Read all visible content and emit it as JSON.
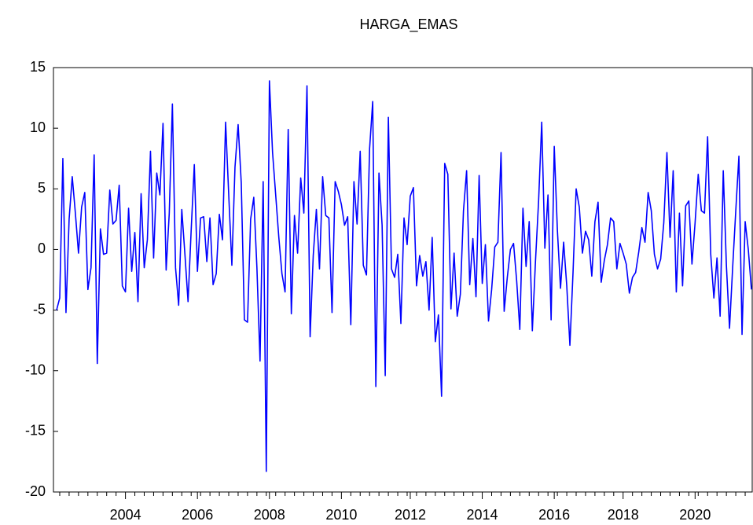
{
  "chart_data": {
    "type": "line",
    "title": "HARGA_EMAS",
    "categories": [
      null,
      null,
      null,
      null,
      null,
      null,
      null,
      null,
      null,
      null,
      null,
      null,
      null,
      null,
      null,
      null,
      null,
      null,
      null,
      null,
      null,
      null,
      "2004",
      null,
      null,
      null,
      null,
      null,
      null,
      null,
      null,
      null,
      null,
      null,
      null,
      null,
      null,
      null,
      null,
      null,
      null,
      null,
      null,
      null,
      null,
      "2006",
      null,
      null,
      null,
      null,
      null,
      null,
      null,
      null,
      null,
      null,
      null,
      null,
      null,
      null,
      null,
      null,
      null,
      null,
      null,
      null,
      null,
      null,
      "2008",
      null,
      null,
      null,
      null,
      null,
      null,
      null,
      null,
      null,
      null,
      null,
      null,
      null,
      null,
      null,
      null,
      null,
      null,
      null,
      null,
      null,
      null,
      "2010",
      null,
      null,
      null,
      null,
      null,
      null,
      null,
      null,
      null,
      null,
      null,
      null,
      null,
      null,
      null,
      null,
      null,
      null,
      null,
      null,
      null,
      "2012",
      null,
      null,
      null,
      null,
      null,
      null,
      null,
      null,
      null,
      null,
      null,
      null,
      null,
      null,
      null,
      null,
      null,
      null,
      null,
      null,
      null,
      null,
      "2014",
      null,
      null,
      null,
      null,
      null,
      null,
      null,
      null,
      null,
      null,
      null,
      null,
      null,
      null,
      null,
      null,
      null,
      null,
      null,
      null,
      null,
      null,
      "2016",
      null,
      null,
      null,
      null,
      null,
      null,
      null,
      null,
      null,
      null,
      null,
      null,
      null,
      null,
      null,
      null,
      null,
      null,
      null,
      null,
      null,
      "2018",
      null,
      null,
      null,
      null,
      null,
      null,
      null,
      null,
      null,
      null,
      null,
      null,
      null,
      null,
      null,
      null,
      null,
      null,
      null,
      null,
      null,
      null,
      "2020",
      null,
      null,
      null,
      null,
      null,
      null,
      null,
      null,
      null,
      null,
      null,
      null,
      null,
      null,
      null,
      null,
      null,
      null
    ],
    "series": [
      {
        "name": "HARGA_EMAS",
        "color": "#0000ff",
        "values": [
          -5,
          -4,
          7.5,
          -5.2,
          2.5,
          6,
          3,
          -0.3,
          3.5,
          4.7,
          -3.3,
          -1.5,
          7.8,
          -9.4,
          1.7,
          -0.4,
          -0.3,
          4.9,
          2.1,
          2.4,
          5.3,
          -3,
          -3.5,
          3.4,
          -1.8,
          1.4,
          -4.3,
          4.6,
          -1.5,
          0.8,
          8.1,
          -0.7,
          6.3,
          4.5,
          10.4,
          -1.7,
          3,
          12,
          -1.5,
          -4.6,
          3.3,
          -0.4,
          -4.3,
          1.6,
          7,
          -1.8,
          2.6,
          2.7,
          -1,
          2.6,
          -2.9,
          -2,
          2.9,
          0.8,
          10.5,
          4.5,
          -1.3,
          6.8,
          10.3,
          5.5,
          -5.8,
          -6,
          2.5,
          4.3,
          -1.5,
          -9.2,
          5.6,
          -18.3,
          13.9,
          8,
          4.5,
          1,
          -2,
          -3.5,
          9.9,
          -5.3,
          2.8,
          -0.3,
          5.9,
          3,
          13.5,
          -7.2,
          -0.5,
          3.3,
          -1.6,
          6,
          2.8,
          2.6,
          -5.2,
          5.6,
          4.8,
          3.7,
          2,
          2.7,
          -6.2,
          5.6,
          2.1,
          8.1,
          -1.3,
          -2.1,
          8.3,
          12.2,
          -11.3,
          6.3,
          2,
          -10.4,
          10.9,
          -1.6,
          -2.3,
          -0.4,
          -6.1,
          2.6,
          0.4,
          4.4,
          5.1,
          -3,
          -0.5,
          -2.2,
          -1,
          -5,
          1,
          -7.6,
          -5.4,
          -12.1,
          7.1,
          6.2,
          -4.9,
          -0.3,
          -5.5,
          -3.7,
          3.2,
          6.5,
          -2.9,
          0.9,
          -3.9,
          6.1,
          -2.8,
          0.4,
          -5.9,
          -3.3,
          0.2,
          0.6,
          8,
          -5.1,
          -2.3,
          0,
          0.5,
          -2.6,
          -6.6,
          3.4,
          -1.4,
          2.3,
          -6.7,
          -1,
          4,
          10.5,
          0.1,
          4.5,
          -5.8,
          8.5,
          1.6,
          -3.2,
          0.6,
          -3,
          -7.9,
          -1.9,
          5,
          3.5,
          -0.3,
          1.5,
          0.8,
          -2.2,
          2.3,
          3.9,
          -2.7,
          -0.9,
          0.4,
          2.6,
          2.3,
          -1.6,
          0.5,
          -0.3,
          -1.2,
          -3.6,
          -2.3,
          -1.9,
          -0.2,
          1.8,
          0.6,
          4.7,
          3.2,
          -0.4,
          -1.6,
          -0.8,
          2.2,
          8,
          1,
          6.5,
          -3.5,
          3,
          -3,
          3.6,
          4,
          -1.2,
          2.2,
          6.2,
          3.2,
          3,
          9.3,
          -0.4,
          -4,
          -0.7,
          -5.5,
          6.5,
          -1.3,
          -6.5,
          -1.5,
          3.2,
          7.7,
          -7,
          2.3,
          0,
          -3.3
        ]
      }
    ],
    "ylim": [
      -20,
      15
    ],
    "yticks": [
      -20,
      -15,
      -10,
      -5,
      0,
      5,
      10,
      15
    ],
    "grid": false
  }
}
